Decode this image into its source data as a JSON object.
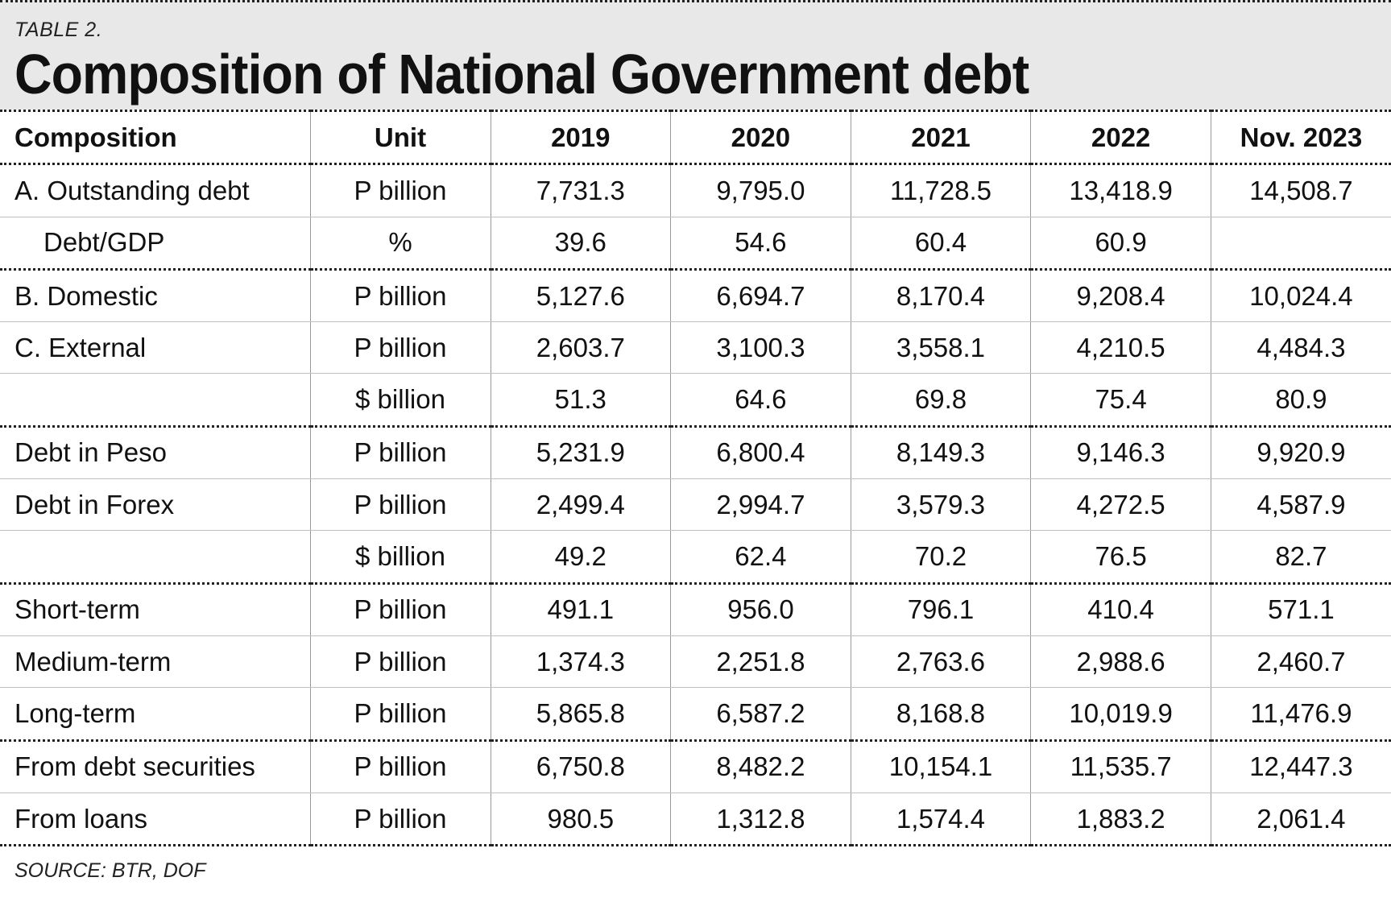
{
  "header": {
    "label": "TABLE 2.",
    "title": "Composition of National Government debt"
  },
  "table": {
    "columns": [
      "Composition",
      "Unit",
      "2019",
      "2020",
      "2021",
      "2022",
      "Nov. 2023"
    ],
    "rows": [
      [
        "A. Outstanding debt",
        "P billion",
        "7,731.3",
        "9,795.0",
        "11,728.5",
        "13,418.9",
        "14,508.7"
      ],
      [
        "Debt/GDP",
        "%",
        "39.6",
        "54.6",
        "60.4",
        "60.9",
        ""
      ],
      [
        "B. Domestic",
        "P billion",
        "5,127.6",
        "6,694.7",
        "8,170.4",
        "9,208.4",
        "10,024.4"
      ],
      [
        "C. External",
        "P billion",
        "2,603.7",
        "3,100.3",
        "3,558.1",
        "4,210.5",
        "4,484.3"
      ],
      [
        "",
        "$ billion",
        "51.3",
        "64.6",
        "69.8",
        "75.4",
        "80.9"
      ],
      [
        "Debt in Peso",
        "P billion",
        "5,231.9",
        "6,800.4",
        "8,149.3",
        "9,146.3",
        "9,920.9"
      ],
      [
        "Debt in Forex",
        "P billion",
        "2,499.4",
        "2,994.7",
        "3,579.3",
        "4,272.5",
        "4,587.9"
      ],
      [
        "",
        "$ billion",
        "49.2",
        "62.4",
        "70.2",
        "76.5",
        "82.7"
      ],
      [
        "Short-term",
        "P billion",
        "491.1",
        "956.0",
        "796.1",
        "410.4",
        "571.1"
      ],
      [
        "Medium-term",
        "P billion",
        "1,374.3",
        "2,251.8",
        "2,763.6",
        "2,988.6",
        "2,460.7"
      ],
      [
        "Long-term",
        "P billion",
        "5,865.8",
        "6,587.2",
        "8,168.8",
        "10,019.9",
        "11,476.9"
      ],
      [
        "From debt securities",
        "P billion",
        "6,750.8",
        "8,482.2",
        "10,154.1",
        "11,535.7",
        "12,447.3"
      ],
      [
        "From loans",
        "P billion",
        "980.5",
        "1,312.8",
        "1,574.4",
        "1,883.2",
        "2,061.4"
      ]
    ]
  },
  "footer": {
    "source": "SOURCE: BTR, DOF"
  }
}
